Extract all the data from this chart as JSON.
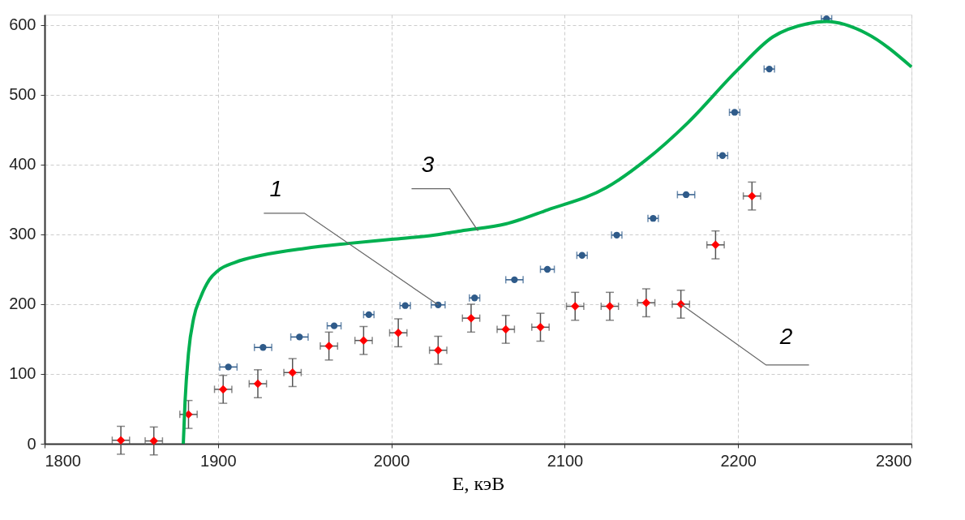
{
  "chart_data": {
    "type": "scatter",
    "xlabel": "E, кэВ",
    "xlim": [
      1800,
      2300
    ],
    "xticks": [
      1800,
      1900,
      2000,
      2100,
      2200,
      2300
    ],
    "ylim": [
      0,
      615
    ],
    "yticks": [
      0,
      100,
      200,
      300,
      400,
      500,
      600
    ],
    "grid": true,
    "series": [
      {
        "color": "#2f5b8a",
        "marker": "circle",
        "x": [
          1906,
          1926,
          1947,
          1967,
          1987,
          2008,
          2027,
          2048,
          2071,
          2090,
          2110,
          2130,
          2151,
          2170,
          2191,
          2198,
          2218,
          2251
        ],
        "values": [
          110,
          138,
          153,
          169,
          185,
          198,
          199,
          209,
          235,
          250,
          270,
          299,
          323,
          357,
          413,
          475,
          537,
          609
        ],
        "xerrors": [
          5,
          5,
          5,
          4,
          3,
          3,
          4,
          3,
          5,
          4,
          3,
          3,
          3,
          5,
          3,
          3,
          3,
          3
        ]
      },
      {
        "color": "#ff0000",
        "marker": "diamond",
        "x": [
          1844,
          1863,
          1883,
          1903,
          1923,
          1943,
          1964,
          1984,
          2004,
          2027,
          2046,
          2066,
          2086,
          2106,
          2126,
          2147,
          2167,
          2187,
          2208
        ],
        "values": [
          5,
          4,
          42,
          78,
          86,
          102,
          140,
          148,
          159,
          134,
          180,
          164,
          167,
          197,
          197,
          202,
          200,
          285,
          355
        ],
        "errors": [
          20,
          20,
          20,
          20,
          20,
          20,
          20,
          20,
          20,
          20,
          20,
          20,
          20,
          20,
          20,
          20,
          20,
          20,
          20
        ],
        "xerrors": [
          5,
          5,
          5,
          5,
          5,
          5,
          5,
          5,
          5,
          5,
          5,
          5,
          5,
          5,
          5,
          5,
          5,
          5,
          5
        ]
      },
      {
        "type": "line",
        "color": "#00b050",
        "marker": "none",
        "line_style": "solid",
        "x": [
          1880,
          1881,
          1883,
          1886,
          1890,
          1895,
          1900,
          1910,
          1925,
          1950,
          1975,
          2000,
          2025,
          2040,
          2066,
          2090,
          2124,
          2147,
          2171,
          2199,
          2220,
          2240,
          2251,
          2274,
          2300
        ],
        "values": [
          0,
          60,
          130,
          180,
          210,
          235,
          248,
          260,
          270,
          280,
          287,
          293,
          299,
          305,
          315,
          335,
          367,
          407,
          460,
          534,
          583,
          602,
          605,
          588,
          540
        ]
      }
    ],
    "annotations": [
      {
        "text": "1",
        "x": 2027,
        "y": 199
      },
      {
        "text": "3",
        "x": 2050,
        "y": 305
      },
      {
        "text": "2",
        "x": 2167,
        "y": 200
      }
    ]
  }
}
